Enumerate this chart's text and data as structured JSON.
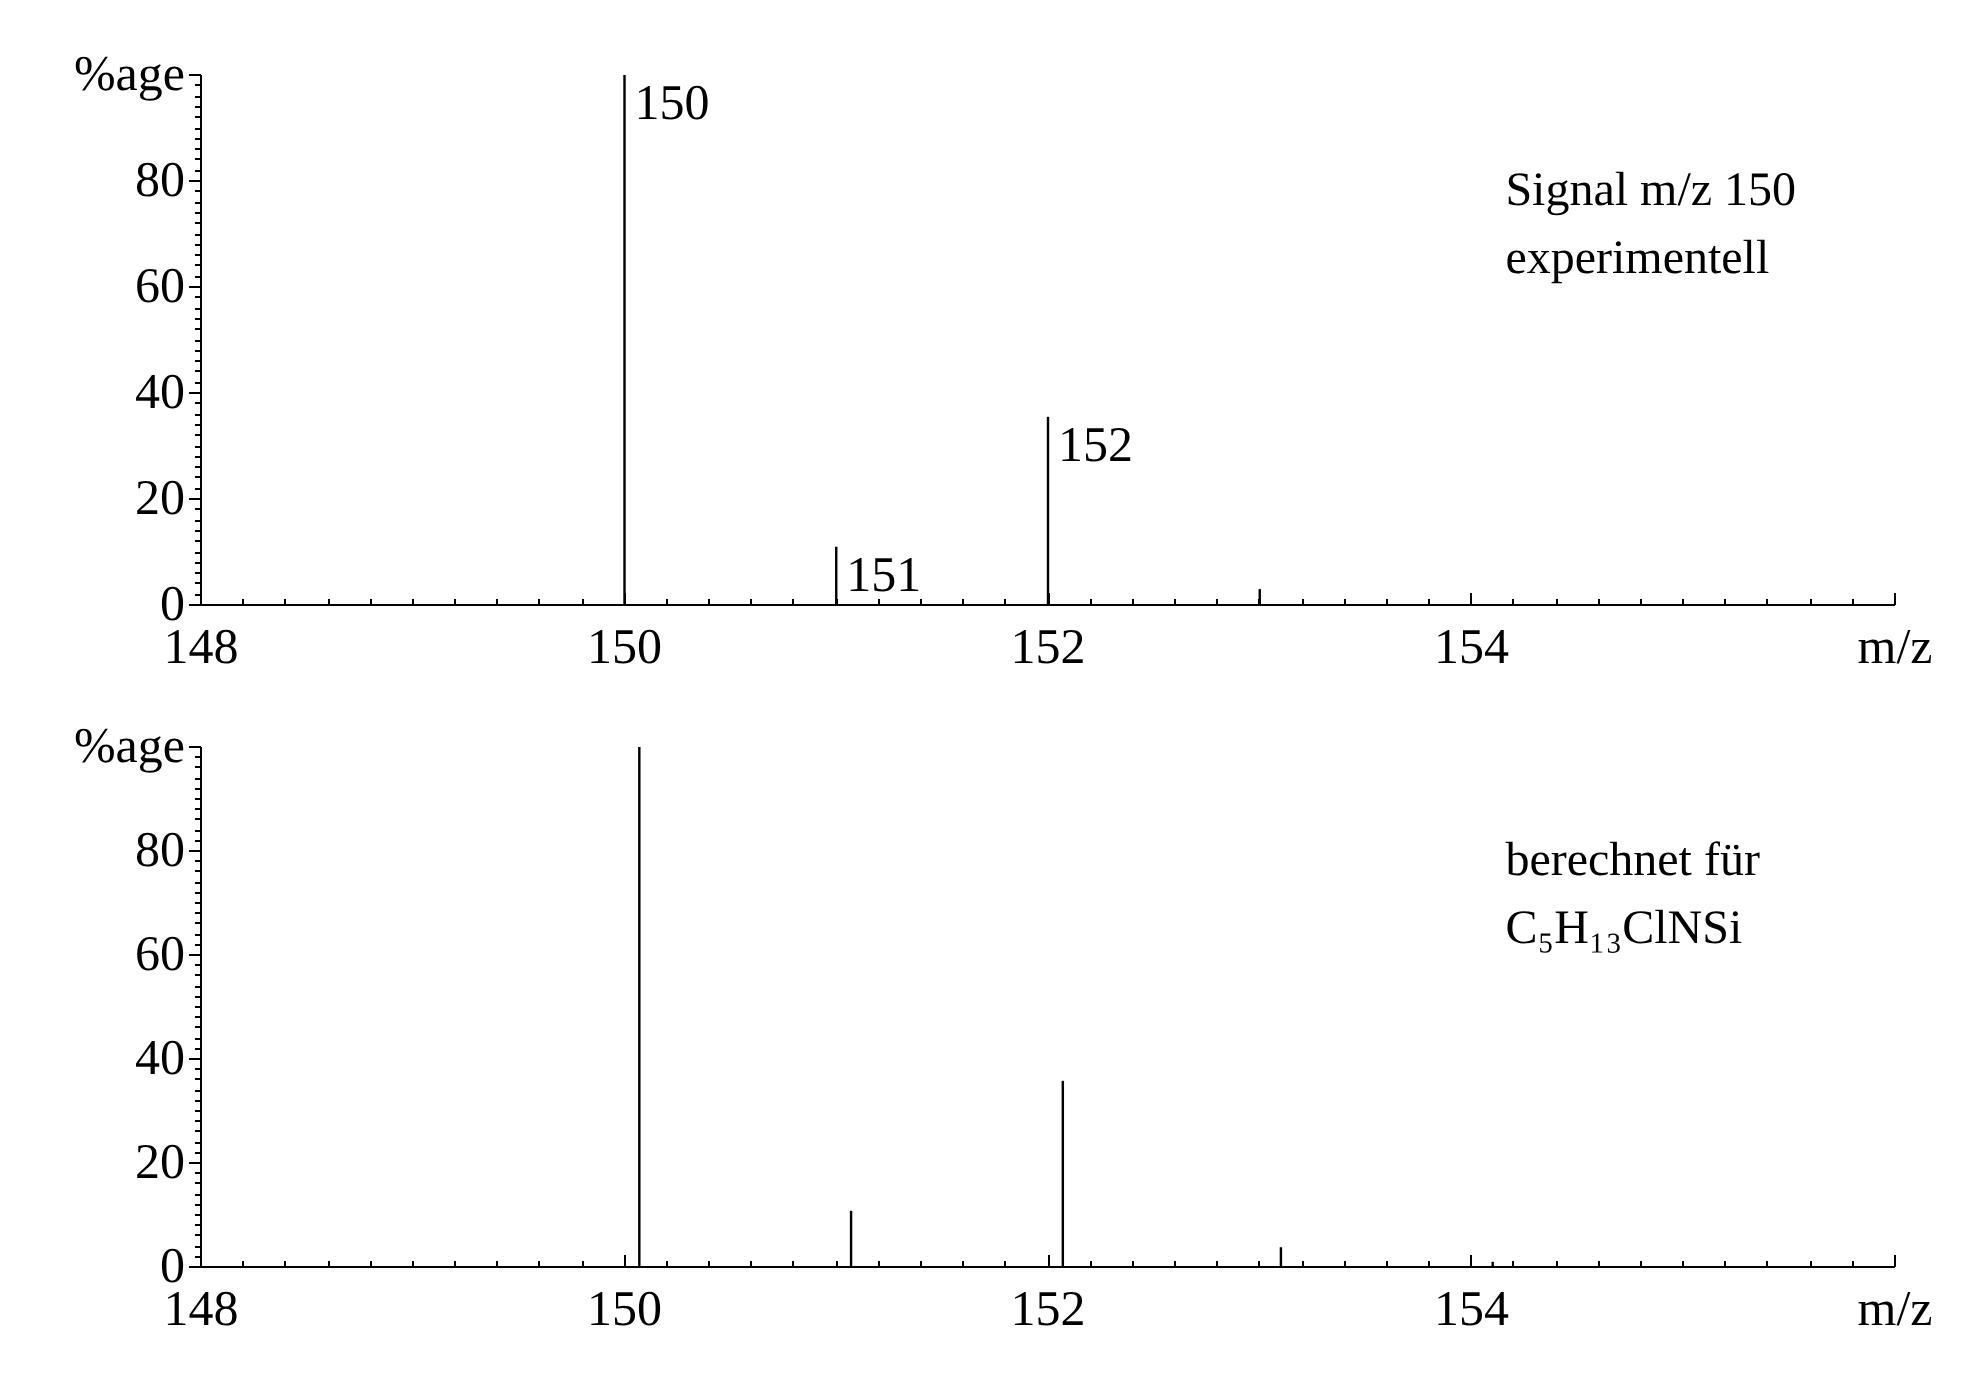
{
  "chart_data": [
    {
      "type": "bar",
      "x": [
        150,
        151,
        152,
        153
      ],
      "values": [
        100,
        11,
        35.5,
        3
      ],
      "color": "#000000",
      "xlim": [
        148,
        156
      ],
      "ylim": [
        0,
        100
      ],
      "xticks": [
        148,
        150,
        152,
        154
      ],
      "yticks": [
        0,
        20,
        40,
        60,
        80
      ],
      "xlabel": "m/z",
      "ylabel": "%age",
      "grid": false,
      "annotations": [
        {
          "text": "150",
          "x": 150,
          "y": 100
        },
        {
          "text": "151",
          "x": 151,
          "y": 11
        },
        {
          "text": "152",
          "x": 152,
          "y": 35.5
        },
        "Signal m/z 150\nexperimentell"
      ]
    },
    {
      "type": "bar",
      "x": [
        150.07,
        151.07,
        152.07,
        153.1,
        154.1
      ],
      "values": [
        100,
        10.8,
        35.8,
        3.8,
        1
      ],
      "color": "#000000",
      "xlim": [
        148,
        156
      ],
      "ylim": [
        0,
        100
      ],
      "xticks": [
        148,
        150,
        152,
        154
      ],
      "yticks": [
        0,
        20,
        40,
        60,
        80
      ],
      "xlabel": "m/z",
      "ylabel": "%age",
      "grid": false,
      "annotations": [
        "berechnet für\nC₅H₁₃ClNSi"
      ]
    }
  ]
}
